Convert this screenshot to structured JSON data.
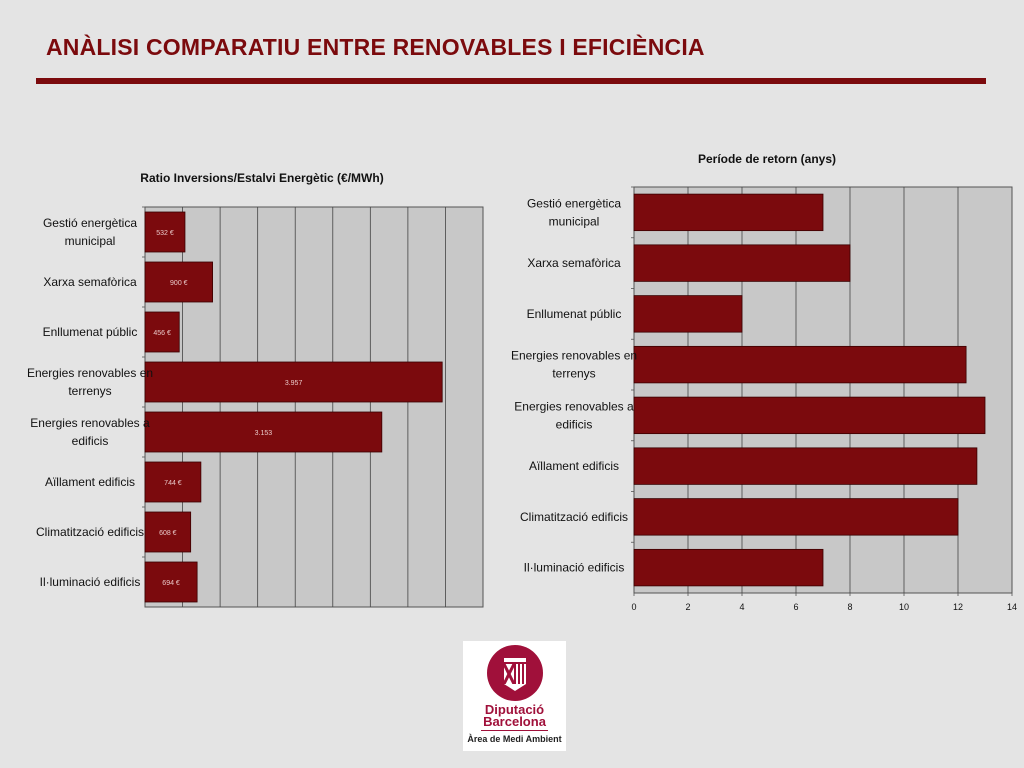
{
  "slide": {
    "title": "ANÀLISI COMPARATIU ENTRE RENOVABLES I EFICIÈNCIA",
    "accent_color": "#7b0a0d"
  },
  "chart_data": [
    {
      "type": "bar",
      "orientation": "horizontal",
      "title": "Ratio Inversions/Estalvi Energètic (€/MWh)",
      "categories": [
        [
          "Gestió energètica",
          "municipal"
        ],
        [
          "Xarxa semafòrica"
        ],
        [
          "Enllumenat públic"
        ],
        [
          "Energies renovables en",
          "terrenys"
        ],
        [
          "Energies renovables a",
          "edificis"
        ],
        [
          "Aïllament edificis"
        ],
        [
          "Climatització edificis"
        ],
        [
          "Il·luminació edificis"
        ]
      ],
      "values": [
        532,
        900,
        456,
        3957,
        3153,
        744,
        608,
        694
      ],
      "data_labels": [
        "532 €",
        "900 €",
        "456 €",
        "3.957",
        "3.153",
        "744 €",
        "608 €",
        "694 €"
      ],
      "xlim": [
        0,
        4500
      ],
      "value_axis_ticks_shown": false,
      "bar_color": "#7b0a0d",
      "plot_bg": "#c8c8c8",
      "grid": true
    },
    {
      "type": "bar",
      "orientation": "horizontal",
      "title": "Període de retorn (anys)",
      "categories": [
        [
          "Gestió energètica",
          "municipal"
        ],
        [
          "Xarxa semafòrica"
        ],
        [
          "Enllumenat públic"
        ],
        [
          "Energies renovables en",
          "terrenys"
        ],
        [
          "Energies renovables a",
          "edificis"
        ],
        [
          "Aïllament edificis"
        ],
        [
          "Climatització edificis"
        ],
        [
          "Il·luminació edificis"
        ]
      ],
      "values": [
        7,
        8,
        4,
        12.3,
        13,
        12.7,
        12,
        7
      ],
      "xlim": [
        0,
        14
      ],
      "xticks": [
        0,
        2,
        4,
        6,
        8,
        10,
        12,
        14
      ],
      "bar_color": "#7b0a0d",
      "plot_bg": "#c8c8c8",
      "grid": true
    }
  ],
  "logo": {
    "line1": "Diputació",
    "line2": "Barcelona",
    "subtitle": "Àrea de Medi Ambient",
    "color": "#a0103a"
  }
}
